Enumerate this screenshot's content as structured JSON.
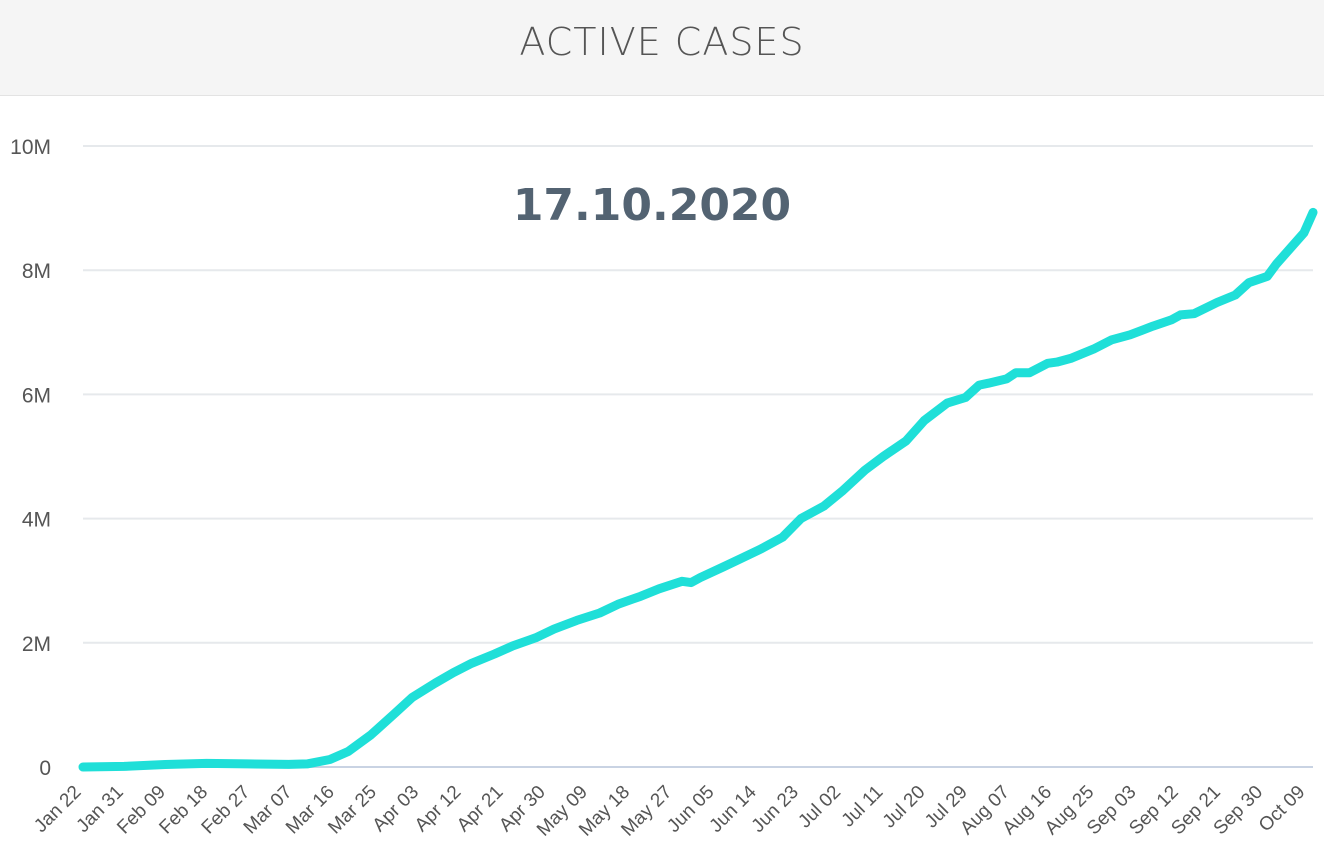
{
  "header": {
    "title": "ACTIVE CASES"
  },
  "colors": {
    "line": "#1fdfd8",
    "grid": "#e6e9ec",
    "axis": "#c9d3e3",
    "annotation": "#536372"
  },
  "chart_data": {
    "type": "line",
    "title": "ACTIVE CASES",
    "annotation": "17.10.2020",
    "xlabel": "",
    "ylabel": "",
    "ylim": [
      0,
      10000000
    ],
    "yticks": [
      0,
      2000000,
      4000000,
      6000000,
      8000000,
      10000000
    ],
    "ytick_labels": [
      "0",
      "2M",
      "4M",
      "6M",
      "8M",
      "10M"
    ],
    "x_start": "2020-01-22",
    "x_end": "2020-10-17",
    "xtick_labels": [
      "Jan 22",
      "Jan 31",
      "Feb 09",
      "Feb 18",
      "Feb 27",
      "Mar 07",
      "Mar 16",
      "Mar 25",
      "Apr 03",
      "Apr 12",
      "Apr 21",
      "Apr 30",
      "May 09",
      "May 18",
      "May 27",
      "Jun 05",
      "Jun 14",
      "Jun 23",
      "Jul 02",
      "Jul 11",
      "Jul 20",
      "Jul 29",
      "Aug 07",
      "Aug 16",
      "Aug 25",
      "Sep 03",
      "Sep 12",
      "Sep 21",
      "Sep 30",
      "Oct 09"
    ],
    "grid": true,
    "legend": "none",
    "series": [
      {
        "x": [
          "2020-01-22",
          "2020-01-31",
          "2020-02-09",
          "2020-02-18",
          "2020-02-27",
          "2020-03-07",
          "2020-03-11",
          "2020-03-16",
          "2020-03-20",
          "2020-03-25",
          "2020-03-30",
          "2020-04-03",
          "2020-04-08",
          "2020-04-12",
          "2020-04-16",
          "2020-04-21",
          "2020-04-25",
          "2020-04-30",
          "2020-05-04",
          "2020-05-09",
          "2020-05-14",
          "2020-05-18",
          "2020-05-23",
          "2020-05-27",
          "2020-06-01",
          "2020-06-03",
          "2020-06-05",
          "2020-06-10",
          "2020-06-14",
          "2020-06-18",
          "2020-06-23",
          "2020-06-27",
          "2020-07-02",
          "2020-07-06",
          "2020-07-11",
          "2020-07-15",
          "2020-07-20",
          "2020-07-24",
          "2020-07-29",
          "2020-08-02",
          "2020-08-05",
          "2020-08-07",
          "2020-08-11",
          "2020-08-13",
          "2020-08-16",
          "2020-08-20",
          "2020-08-22",
          "2020-08-25",
          "2020-08-30",
          "2020-09-03",
          "2020-09-07",
          "2020-09-12",
          "2020-09-16",
          "2020-09-18",
          "2020-09-21",
          "2020-09-26",
          "2020-09-30",
          "2020-10-03",
          "2020-10-07",
          "2020-10-09",
          "2020-10-12",
          "2020-10-15",
          "2020-10-17"
        ],
        "values": [
          0,
          10000,
          40000,
          58000,
          50000,
          42000,
          50000,
          120000,
          250000,
          520000,
          850000,
          1120000,
          1350000,
          1520000,
          1670000,
          1820000,
          1950000,
          2080000,
          2220000,
          2360000,
          2480000,
          2620000,
          2750000,
          2870000,
          2990000,
          2970000,
          3050000,
          3220000,
          3360000,
          3500000,
          3700000,
          4000000,
          4200000,
          4440000,
          4780000,
          5000000,
          5250000,
          5580000,
          5860000,
          5950000,
          6150000,
          6180000,
          6250000,
          6350000,
          6350000,
          6500000,
          6520000,
          6580000,
          6730000,
          6880000,
          6960000,
          7100000,
          7200000,
          7280000,
          7300000,
          7480000,
          7600000,
          7800000,
          7900000,
          8100000,
          8350000,
          8600000,
          8930000
        ]
      }
    ]
  }
}
